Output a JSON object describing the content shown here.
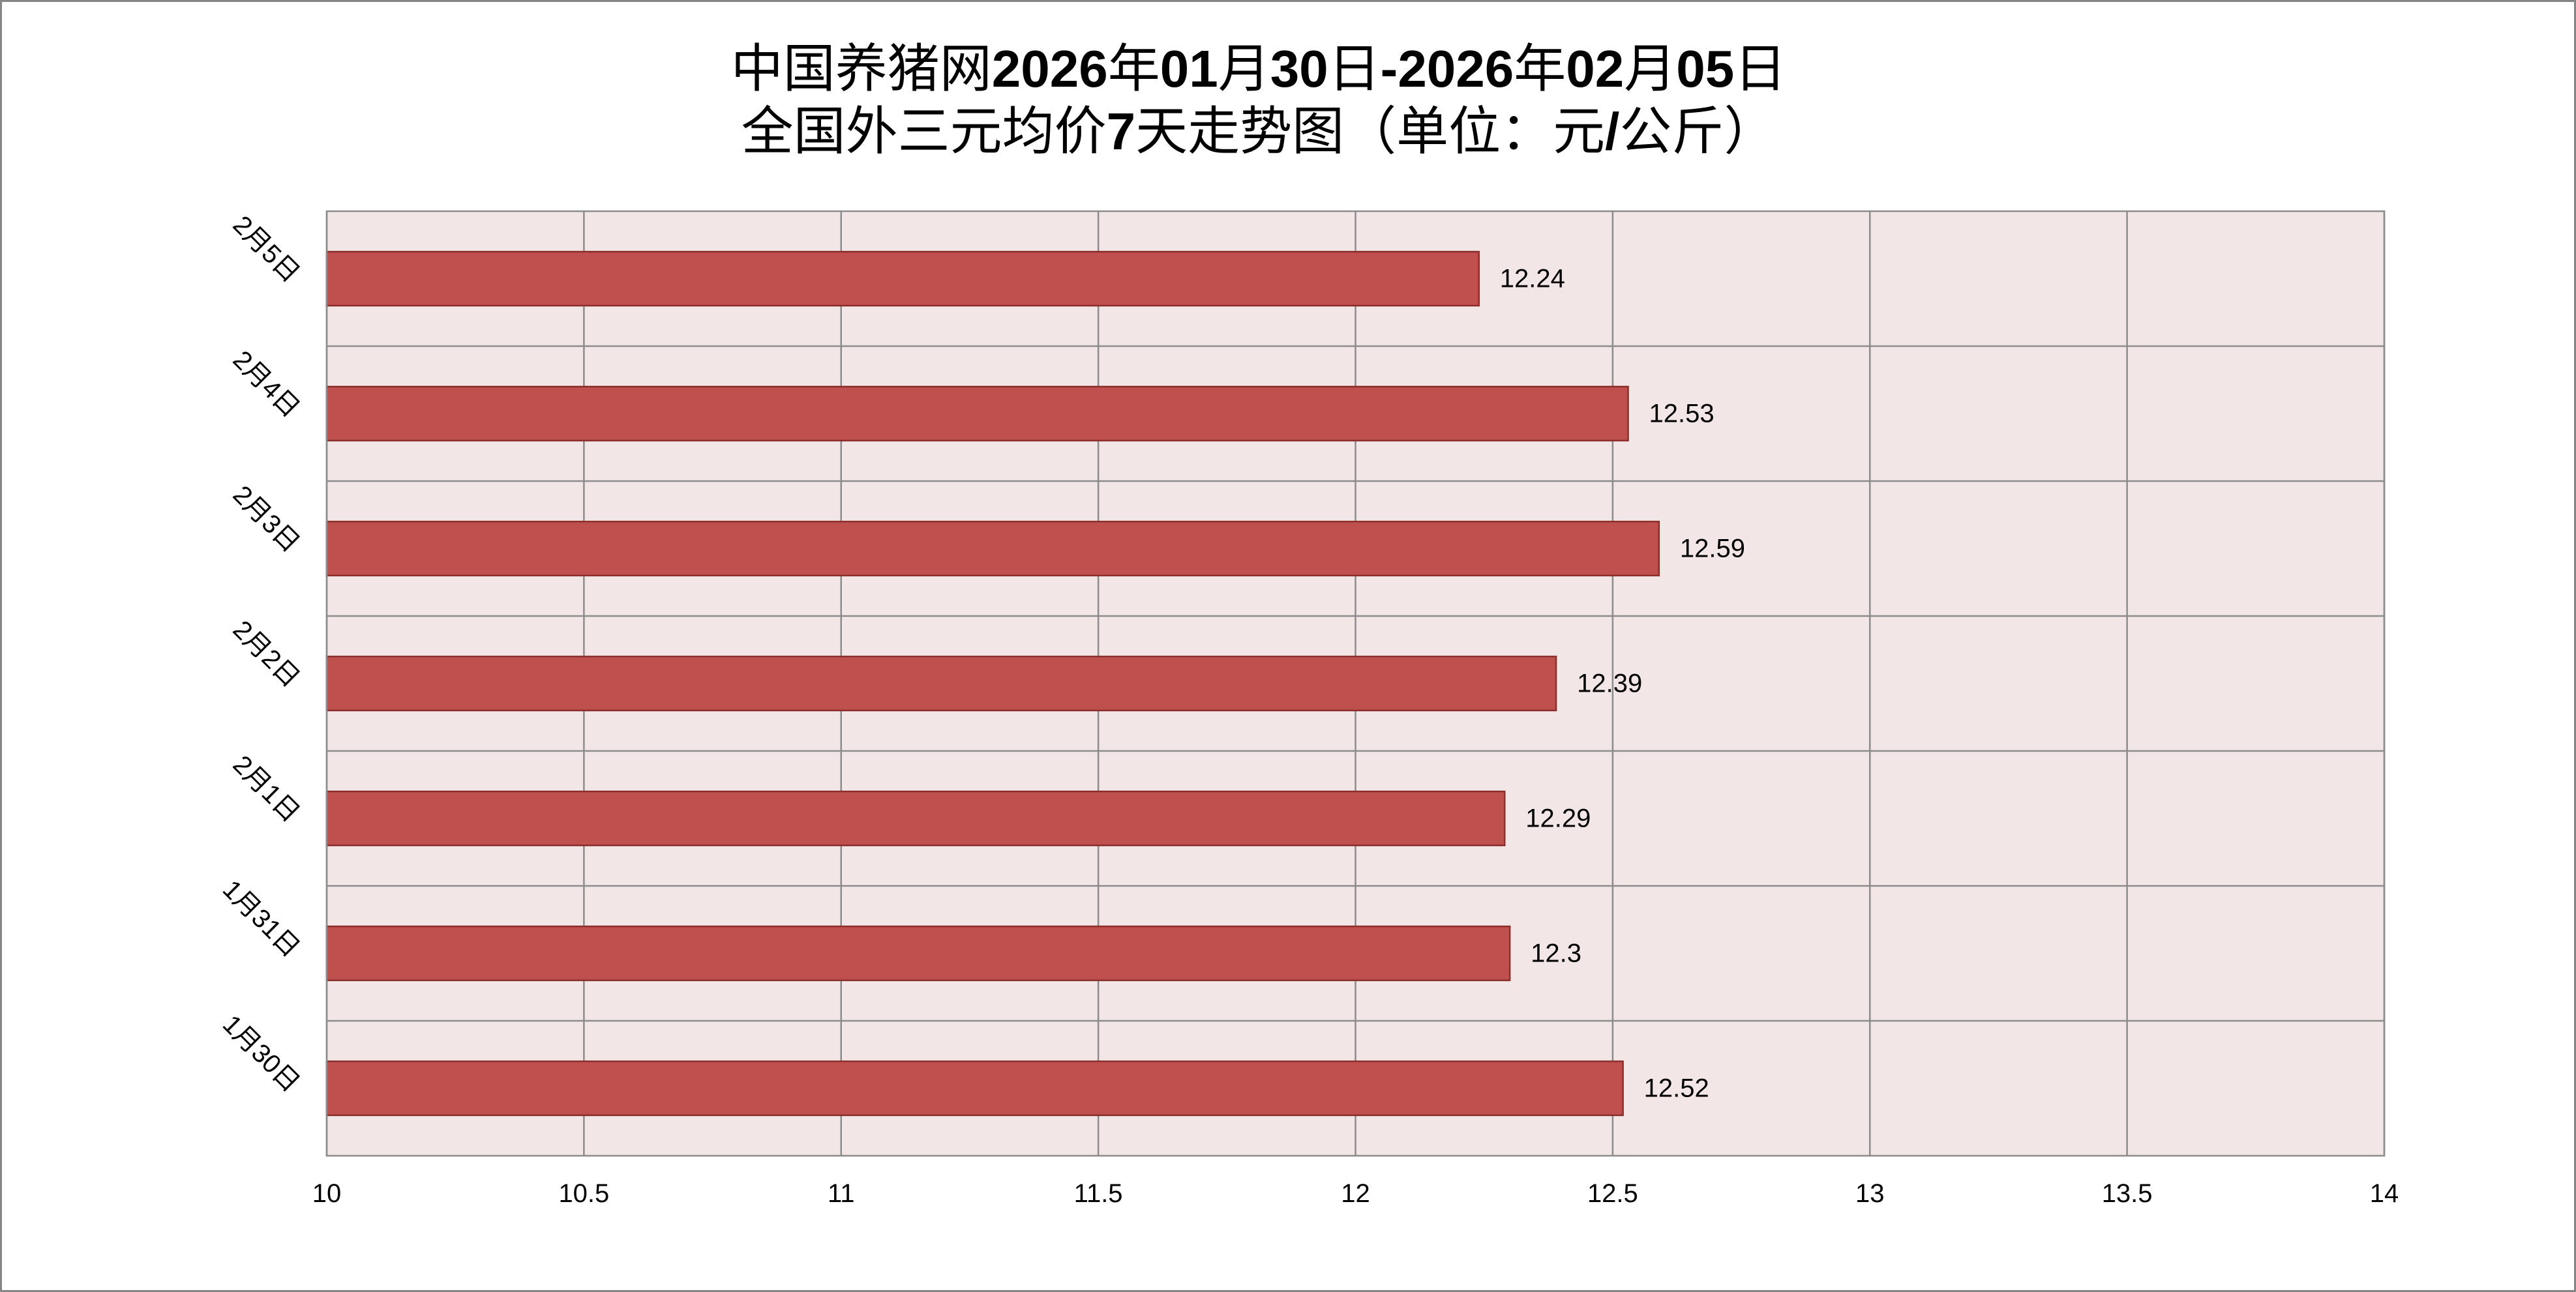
{
  "chart_data": {
    "type": "bar",
    "orientation": "horizontal",
    "title": "中国养猪网2026年01月30日-2026年02月05日",
    "subtitle": "全国外三元均价7天走势图（单位：元/公斤）",
    "categories": [
      "1月30日",
      "1月31日",
      "2月1日",
      "2月2日",
      "2月3日",
      "2月4日",
      "2月5日"
    ],
    "values": [
      12.52,
      12.3,
      12.29,
      12.39,
      12.59,
      12.53,
      12.24
    ],
    "xlim": [
      10,
      14
    ],
    "x_ticks": [
      10,
      10.5,
      11,
      11.5,
      12,
      12.5,
      13,
      13.5,
      14
    ],
    "grid": true,
    "legend": "none",
    "colors": {
      "bar_fill": "#C0504D",
      "bar_stroke": "#8B2F2D",
      "plot_background": "#F2E6E6",
      "gridline": "#8C8C8C"
    }
  }
}
